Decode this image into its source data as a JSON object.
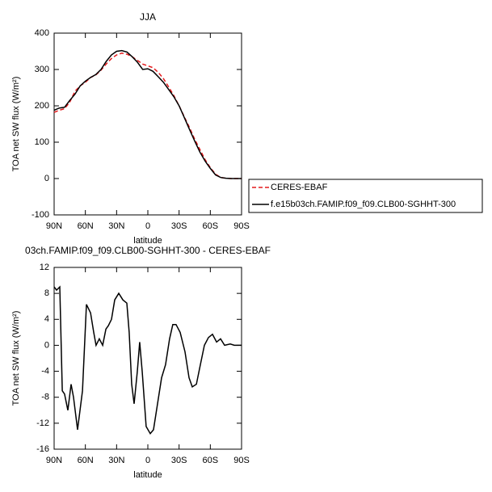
{
  "chart_data": [
    {
      "type": "line",
      "title": "JJA",
      "x_label": "latitude",
      "y_label": "TOA net SW flux (W/m²)",
      "x": [
        90,
        85,
        80,
        75,
        70,
        65,
        60,
        55,
        50,
        45,
        40,
        35,
        30,
        25,
        20,
        15,
        10,
        5,
        0,
        -5,
        -10,
        -15,
        -20,
        -25,
        -30,
        -35,
        -40,
        -45,
        -50,
        -55,
        -60,
        -65,
        -70,
        -75,
        -80,
        -85,
        -90
      ],
      "xlim": [
        90,
        -90
      ],
      "xticks": [
        {
          "value": 90,
          "label": "90N"
        },
        {
          "value": 60,
          "label": "60N"
        },
        {
          "value": 30,
          "label": "30N"
        },
        0,
        {
          "value": -30,
          "label": "30S"
        },
        {
          "value": -60,
          "label": "60S"
        },
        {
          "value": -90,
          "label": "90S"
        }
      ],
      "ylim": [
        -100,
        400
      ],
      "yticks": [
        -100,
        0,
        100,
        200,
        300,
        400
      ],
      "legend": "outside right",
      "series": [
        {
          "name": "CERES-EBAF",
          "color": "#e41a1c",
          "dashed": true,
          "values": [
            182,
            188,
            192,
            210,
            240,
            255,
            265,
            278,
            285,
            298,
            315,
            330,
            340,
            345,
            342,
            335,
            325,
            315,
            310,
            305,
            292,
            275,
            252,
            228,
            200,
            170,
            140,
            108,
            80,
            52,
            30,
            12,
            3,
            1,
            0,
            0,
            0
          ]
        },
        {
          "name": "f.e15b03ch.FAMIP.f09_f09.CLB00-SGHHT-300",
          "color": "#000000",
          "dashed": false,
          "values": [
            188,
            194,
            196,
            215,
            232,
            255,
            268,
            278,
            286,
            300,
            322,
            340,
            350,
            352,
            348,
            335,
            320,
            300,
            302,
            295,
            280,
            265,
            245,
            225,
            200,
            168,
            135,
            103,
            73,
            48,
            28,
            10,
            3,
            1,
            0,
            0,
            0
          ]
        }
      ]
    },
    {
      "type": "line",
      "title": "03ch.FAMIP.f09_f09.CLB00-SGHHT-300 - CERES-EBAF",
      "x_label": "latitude",
      "y_label": "TOA net SW flux (W/m²)",
      "x": [
        90,
        87.7,
        84.6,
        82.2,
        80,
        76.8,
        73.7,
        71.4,
        67.5,
        62.8,
        59,
        55,
        52,
        49.7,
        46.6,
        43.4,
        40.3,
        38,
        34.9,
        31.8,
        27.9,
        24,
        20.2,
        17.9,
        15.5,
        13.2,
        10.1,
        7.8,
        5.4,
        1.6,
        -2.3,
        -5.4,
        -9.3,
        -13.2,
        -17,
        -20.9,
        -24,
        -27.1,
        -31,
        -35.7,
        -39.6,
        -42.7,
        -46.6,
        -50.4,
        -54.3,
        -58.2,
        -62.1,
        -66,
        -69.8,
        -73.7,
        -79.1,
        -83,
        -90
      ],
      "xlim": [
        90,
        -90
      ],
      "xticks": [
        {
          "value": 90,
          "label": "90N"
        },
        {
          "value": 60,
          "label": "60N"
        },
        {
          "value": 30,
          "label": "30N"
        },
        0,
        {
          "value": -30,
          "label": "30S"
        },
        {
          "value": -60,
          "label": "60S"
        },
        {
          "value": -90,
          "label": "90S"
        }
      ],
      "ylim": [
        -16,
        12
      ],
      "yticks": [
        -16,
        -12,
        -8,
        -4,
        0,
        4,
        8,
        12
      ],
      "series": [
        {
          "color": "#000000",
          "dashed": false,
          "values": [
            9,
            8.5,
            9,
            -7,
            -7.5,
            -10,
            -6,
            -8,
            -13,
            -7,
            6.3,
            5,
            2,
            0,
            1,
            0,
            2.5,
            3,
            4,
            7,
            8,
            7,
            6.5,
            2,
            -6,
            -9,
            -4,
            0.5,
            -4,
            -12.5,
            -13.6,
            -13,
            -9,
            -5,
            -3,
            1,
            3.2,
            3.2,
            2,
            -1,
            -5,
            -6.4,
            -6,
            -3,
            0,
            1.2,
            1.7,
            0.5,
            1,
            0,
            0.2,
            0,
            0
          ]
        }
      ]
    }
  ]
}
